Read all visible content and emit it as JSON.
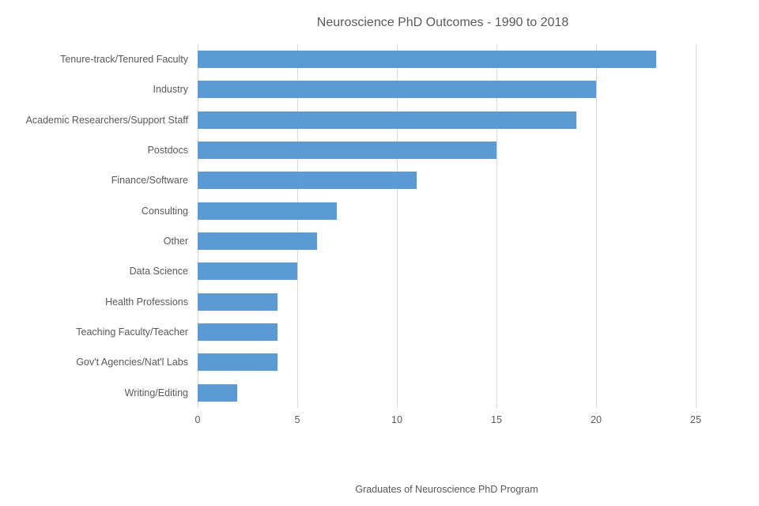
{
  "chart": {
    "type": "bar-horizontal",
    "title": "Neuroscience PhD Outcomes - 1990 to 2018",
    "title_fontsize": 16,
    "title_color": "#595959",
    "xlabel": "Graduates of Neuroscience PhD Program",
    "label_fontsize": 12.5,
    "label_color": "#595959",
    "xlim": [
      0,
      25
    ],
    "xtick_step": 5,
    "xticks": [
      0,
      5,
      10,
      15,
      20,
      25
    ],
    "background_color": "#ffffff",
    "grid_color": "#d9d9d9",
    "bar_color": "#5b9bd5",
    "bar_height_ratio": 0.6,
    "categories": [
      "Tenure-track/Tenured Faculty",
      "Industry",
      "Academic Researchers/Support Staff",
      "Postdocs",
      "Finance/Software",
      "Consulting",
      "Other",
      "Data Science",
      "Health Professions",
      "Teaching Faculty/Teacher",
      "Gov't Agencies/Nat'l Labs",
      "Writing/Editing"
    ],
    "values": [
      23,
      20,
      19,
      15,
      11,
      7,
      6,
      5,
      4,
      4,
      4,
      2
    ]
  }
}
